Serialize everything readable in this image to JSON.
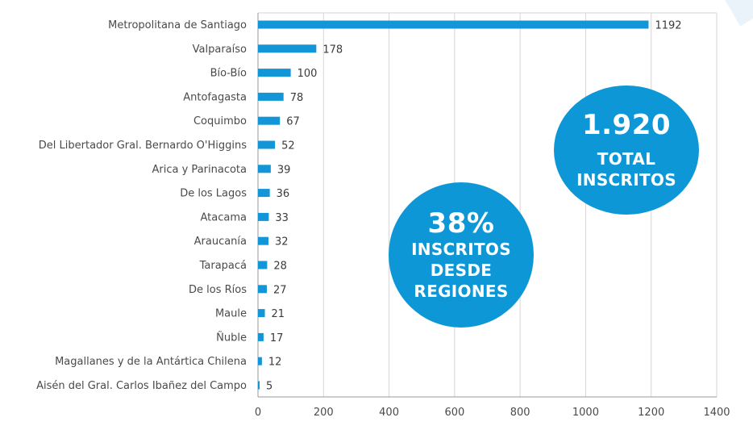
{
  "colors": {
    "bar": "#1296d8",
    "grid": "#d6d6d6",
    "bubble": "#0e97d6",
    "axis": "#9a9a9a"
  },
  "chart_data": {
    "type": "bar",
    "orientation": "horizontal",
    "categories": [
      "Metropolitana de Santiago",
      "Valparaíso",
      "Bío-Bío",
      "Antofagasta",
      "Coquimbo",
      "Del Libertador Gral. Bernardo O'Higgins",
      "Arica y Parinacota",
      "De los Lagos",
      "Atacama",
      "Araucanía",
      "Tarapacá",
      "De los Ríos",
      "Maule",
      "Ñuble",
      "Magallanes y de la Antártica Chilena",
      "Aisén del Gral. Carlos Ibañez del Campo"
    ],
    "values": [
      1192,
      178,
      100,
      78,
      67,
      52,
      39,
      36,
      33,
      32,
      28,
      27,
      21,
      17,
      12,
      5
    ],
    "xlim": [
      0,
      1400
    ],
    "xticks": [
      0,
      200,
      400,
      600,
      800,
      1000,
      1200,
      1400
    ],
    "grid": "vertical",
    "title": "",
    "xlabel": "",
    "ylabel": ""
  },
  "callouts": {
    "total": {
      "value": "1.920",
      "line1": "TOTAL",
      "line2": "INSCRITOS"
    },
    "regions": {
      "value": "38%",
      "line1": "INSCRITOS",
      "line2": "DESDE",
      "line3": "REGIONES"
    }
  }
}
